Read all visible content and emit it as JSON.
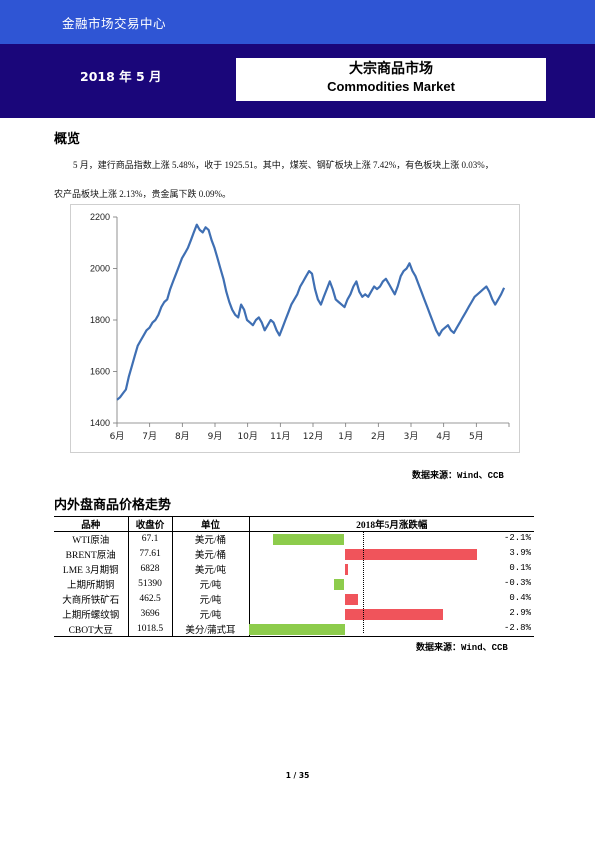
{
  "header": {
    "center_name": "金融市场交易中心",
    "date": "2018 年 5 月",
    "title_cn": "大宗商品市场",
    "title_en": "Commodities Market"
  },
  "overview": {
    "heading": "概览",
    "line1": "5 月，建行商品指数上涨 5.48%，收于 1925.51。其中，煤炭、钢矿板块上涨 7.42%，有色板块上涨 0.03%，",
    "line2": "农产品板块上涨 2.13%，贵金属下跌 0.09%。"
  },
  "chart_data": {
    "type": "line",
    "ylim": [
      1400,
      2200
    ],
    "yticks": [
      "1400",
      "1600",
      "1800",
      "2000",
      "2200"
    ],
    "xticks": [
      "6月",
      "7月",
      "8月",
      "9月",
      "10月",
      "11月",
      "12月",
      "1月",
      "2月",
      "3月",
      "4月",
      "5月"
    ],
    "series_color": "#3f6fb3",
    "series": [
      {
        "values": [
          1490,
          1500,
          1515,
          1530,
          1580,
          1620,
          1660,
          1700,
          1720,
          1740,
          1760,
          1770,
          1790,
          1800,
          1820,
          1850,
          1870,
          1880,
          1920,
          1950,
          1980,
          2010,
          2040,
          2060,
          2080,
          2110,
          2140,
          2170,
          2150,
          2140,
          2160,
          2150,
          2110,
          2080,
          2040,
          2000,
          1960,
          1910,
          1870,
          1840,
          1820,
          1810,
          1860,
          1840,
          1800,
          1790,
          1780,
          1800,
          1810,
          1790,
          1760,
          1780,
          1800,
          1790,
          1760,
          1740,
          1770,
          1800,
          1830,
          1860,
          1880,
          1900,
          1930,
          1950,
          1970,
          1990,
          1980,
          1920,
          1880,
          1860,
          1890,
          1920,
          1950,
          1920,
          1880,
          1870,
          1860,
          1850,
          1880,
          1900,
          1930,
          1950,
          1910,
          1890,
          1900,
          1890,
          1910,
          1930,
          1920,
          1930,
          1950,
          1960,
          1940,
          1920,
          1900,
          1930,
          1970,
          1990,
          2000,
          2020,
          1990,
          1970,
          1940,
          1910,
          1880,
          1850,
          1820,
          1790,
          1760,
          1740,
          1760,
          1770,
          1780,
          1760,
          1750,
          1770,
          1790,
          1810,
          1830,
          1850,
          1870,
          1890,
          1900,
          1910,
          1920,
          1930,
          1910,
          1880,
          1860,
          1880,
          1900,
          1925
        ]
      }
    ]
  },
  "source_note": "数据来源：Wind、CCB",
  "table_section": {
    "heading": "内外盘商品价格走势",
    "headers": [
      "品种",
      "收盘价",
      "单位",
      "2018年5月涨跌幅"
    ],
    "rows": [
      {
        "name": "WTI原油",
        "price": "67.1",
        "unit": "美元/桶",
        "change": "-2.1%",
        "value": -2.1
      },
      {
        "name": "BRENT原油",
        "price": "77.61",
        "unit": "美元/桶",
        "change": "3.9%",
        "value": 3.9
      },
      {
        "name": "LME 3月期铜",
        "price": "6828",
        "unit": "美元/吨",
        "change": "0.1%",
        "value": 0.1
      },
      {
        "name": "上期所期铜",
        "price": "51390",
        "unit": "元/吨",
        "change": "-0.3%",
        "value": -0.3
      },
      {
        "name": "大商所铁矿石",
        "price": "462.5",
        "unit": "元/吨",
        "change": "0.4%",
        "value": 0.4
      },
      {
        "name": "上期所螺纹钢",
        "price": "3696",
        "unit": "元/吨",
        "change": "2.9%",
        "value": 2.9
      },
      {
        "name": "CBOT大豆",
        "price": "1018.5",
        "unit": "美分/蒲式耳",
        "change": "-2.8%",
        "value": -2.8
      }
    ],
    "pos_color": "#f0545b",
    "neg_color": "#8dcc4c"
  },
  "table_source_note": "数据来源：Wind、CCB",
  "page_number": "1 / 35"
}
